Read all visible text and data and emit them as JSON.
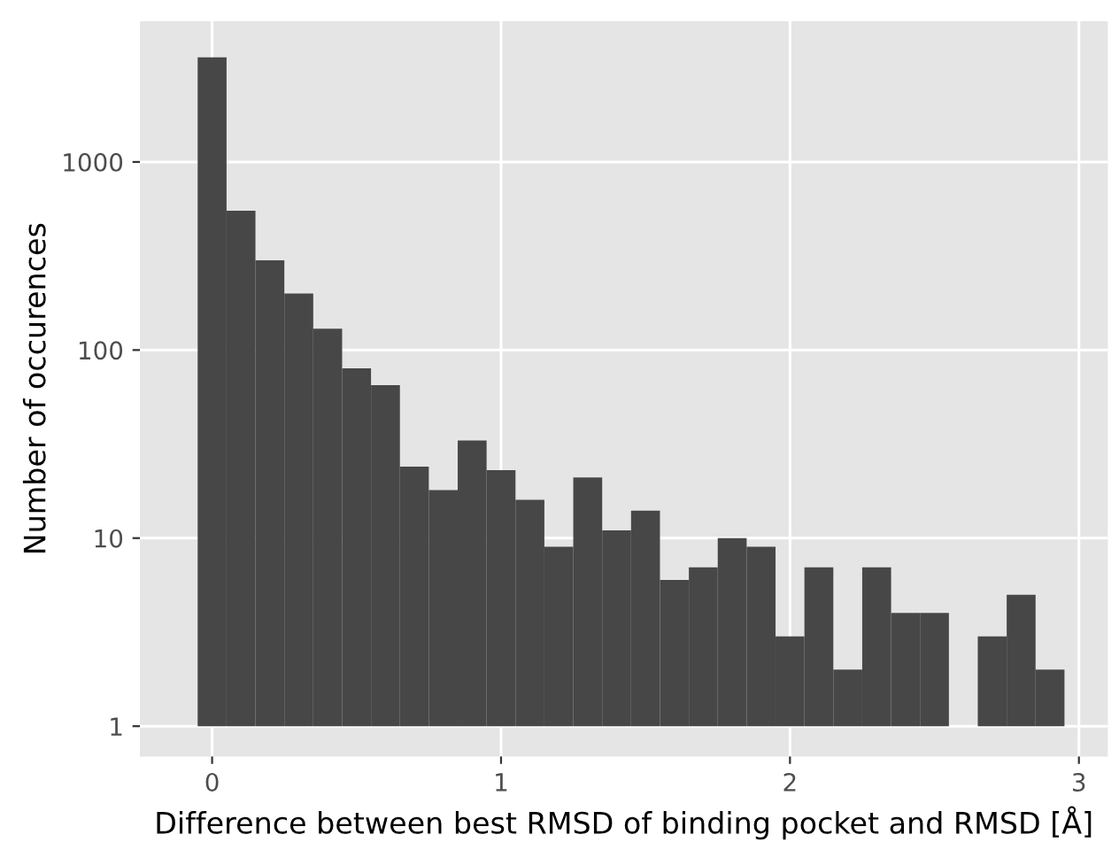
{
  "chart_data": {
    "type": "histogram",
    "xlabel": "Difference between best RMSD of binding pocket and RMSD [Å]",
    "ylabel": "Number of occurences",
    "bins": [
      -0.05,
      0.05,
      0.15,
      0.25,
      0.35,
      0.45,
      0.55,
      0.65,
      0.75,
      0.85,
      0.95,
      1.05,
      1.15,
      1.25,
      1.35,
      1.45,
      1.55,
      1.65,
      1.75,
      1.85,
      1.95,
      2.05,
      2.15,
      2.25,
      2.35,
      2.45,
      2.55,
      2.65,
      2.75,
      2.85,
      2.95
    ],
    "values": [
      3600,
      550,
      300,
      200,
      130,
      80,
      65,
      24,
      18,
      33,
      23,
      16,
      9,
      21,
      11,
      14,
      6,
      7,
      10,
      9,
      3,
      7,
      2,
      7,
      4,
      4,
      1,
      3,
      5,
      2
    ],
    "color": "#474747",
    "log": "y",
    "xlim": [
      -0.25,
      3.1
    ],
    "ylim": [
      0.69,
      5600
    ],
    "xticks": [
      0,
      1,
      2,
      3
    ],
    "yticks": [
      1,
      10,
      100,
      1000
    ],
    "grid": true
  }
}
